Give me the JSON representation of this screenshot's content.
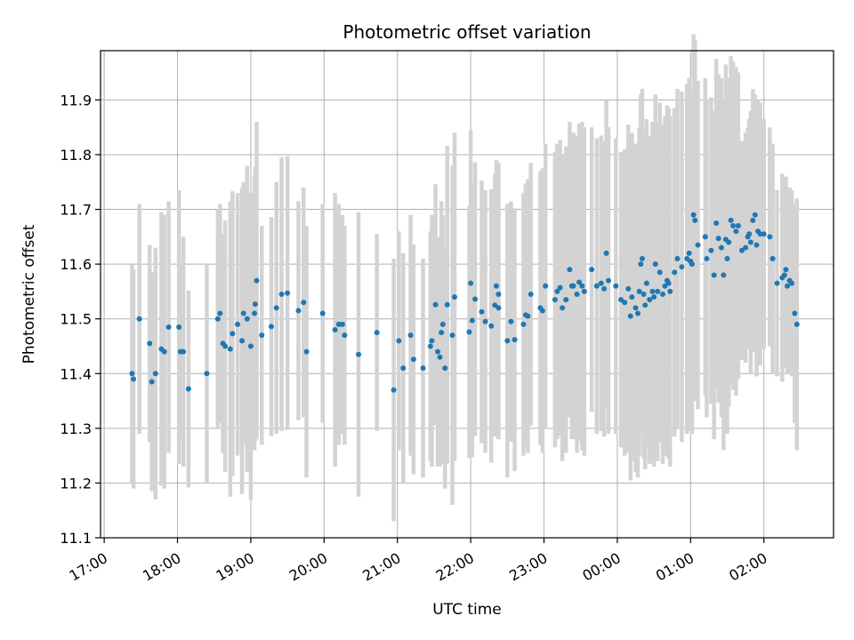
{
  "chart_data": {
    "type": "scatter",
    "title": "Photometric offset variation",
    "xlabel": "UTC time",
    "ylabel": "Photometric offset",
    "x_unit": "hours since 17:00 UTC",
    "xlim": [
      -0.05,
      9.95
    ],
    "ylim": [
      11.1,
      11.99
    ],
    "yticks": [
      11.1,
      11.2,
      11.3,
      11.4,
      11.5,
      11.6,
      11.7,
      11.8,
      11.9
    ],
    "ytick_labels": [
      "11.1",
      "11.2",
      "11.3",
      "11.4",
      "11.5",
      "11.6",
      "11.7",
      "11.8",
      "11.9"
    ],
    "xticks": [
      0,
      1,
      2,
      3,
      4,
      5,
      6,
      7,
      8,
      9
    ],
    "xtick_labels": [
      "17:00",
      "18:00",
      "19:00",
      "20:00",
      "21:00",
      "22:00",
      "23:00",
      "00:00",
      "01:00",
      "02:00"
    ],
    "grid": true,
    "errorbar_color": "#d3d3d3",
    "point_color": "#1f77b4",
    "series": [
      {
        "name": "offset",
        "points": [
          [
            0.38,
            11.4,
            0.2
          ],
          [
            0.4,
            11.39,
            0.2
          ],
          [
            0.48,
            11.5,
            0.21
          ],
          [
            0.62,
            11.455,
            0.18
          ],
          [
            0.65,
            11.385,
            0.2
          ],
          [
            0.7,
            11.4,
            0.23
          ],
          [
            0.78,
            11.445,
            0.25
          ],
          [
            0.82,
            11.44,
            0.25
          ],
          [
            0.88,
            11.485,
            0.23
          ],
          [
            1.02,
            11.485,
            0.25
          ],
          [
            1.04,
            11.44,
            0.16
          ],
          [
            1.08,
            11.44,
            0.21
          ],
          [
            1.15,
            11.372,
            0.18
          ],
          [
            1.4,
            11.4,
            0.2
          ],
          [
            1.55,
            11.5,
            0.2
          ],
          [
            1.58,
            11.51,
            0.2
          ],
          [
            1.62,
            11.455,
            0.2
          ],
          [
            1.65,
            11.45,
            0.23
          ],
          [
            1.72,
            11.445,
            0.27
          ],
          [
            1.75,
            11.473,
            0.26
          ],
          [
            1.82,
            11.49,
            0.24
          ],
          [
            1.88,
            11.46,
            0.28
          ],
          [
            1.9,
            11.51,
            0.24
          ],
          [
            1.95,
            11.5,
            0.28
          ],
          [
            2.0,
            11.45,
            0.28
          ],
          [
            2.05,
            11.51,
            0.25
          ],
          [
            2.06,
            11.527,
            0.25
          ],
          [
            2.08,
            11.57,
            0.29
          ],
          [
            2.15,
            11.47,
            0.2
          ],
          [
            2.28,
            11.486,
            0.2
          ],
          [
            2.35,
            11.52,
            0.23
          ],
          [
            2.42,
            11.545,
            0.25
          ],
          [
            2.5,
            11.547,
            0.25
          ],
          [
            2.65,
            11.515,
            0.2
          ],
          [
            2.72,
            11.53,
            0.21
          ],
          [
            2.76,
            11.44,
            0.23
          ],
          [
            2.98,
            11.51,
            0.2
          ],
          [
            3.15,
            11.48,
            0.25
          ],
          [
            3.2,
            11.49,
            0.22
          ],
          [
            3.25,
            11.49,
            0.2
          ],
          [
            3.28,
            11.47,
            0.2
          ],
          [
            3.47,
            11.435,
            0.26
          ],
          [
            3.72,
            11.475,
            0.18
          ],
          [
            3.95,
            11.37,
            0.24
          ],
          [
            4.02,
            11.46,
            0.2
          ],
          [
            4.08,
            11.41,
            0.21
          ],
          [
            4.18,
            11.47,
            0.22
          ],
          [
            4.22,
            11.426,
            0.21
          ],
          [
            4.35,
            11.41,
            0.2
          ],
          [
            4.45,
            11.45,
            0.21
          ],
          [
            4.47,
            11.46,
            0.23
          ],
          [
            4.52,
            11.526,
            0.22
          ],
          [
            4.55,
            11.44,
            0.21
          ],
          [
            4.58,
            11.43,
            0.2
          ],
          [
            4.6,
            11.475,
            0.24
          ],
          [
            4.62,
            11.49,
            0.2
          ],
          [
            4.65,
            11.41,
            0.22
          ],
          [
            4.68,
            11.526,
            0.29
          ],
          [
            4.75,
            11.47,
            0.31
          ],
          [
            4.78,
            11.54,
            0.3
          ],
          [
            4.98,
            11.476,
            0.23
          ],
          [
            5.0,
            11.565,
            0.28
          ],
          [
            5.02,
            11.497,
            0.25
          ],
          [
            5.06,
            11.536,
            0.25
          ],
          [
            5.15,
            11.513,
            0.24
          ],
          [
            5.2,
            11.495,
            0.24
          ],
          [
            5.28,
            11.487,
            0.25
          ],
          [
            5.33,
            11.525,
            0.24
          ],
          [
            5.35,
            11.56,
            0.23
          ],
          [
            5.38,
            11.545,
            0.24
          ],
          [
            5.38,
            11.52,
            0.24
          ],
          [
            5.5,
            11.46,
            0.25
          ],
          [
            5.55,
            11.495,
            0.22
          ],
          [
            5.6,
            11.462,
            0.24
          ],
          [
            5.72,
            11.49,
            0.24
          ],
          [
            5.75,
            11.507,
            0.24
          ],
          [
            5.78,
            11.505,
            0.25
          ],
          [
            5.82,
            11.545,
            0.24
          ],
          [
            5.95,
            11.52,
            0.25
          ],
          [
            5.98,
            11.515,
            0.26
          ],
          [
            6.02,
            11.56,
            0.26
          ],
          [
            6.15,
            11.535,
            0.27
          ],
          [
            6.18,
            11.55,
            0.27
          ],
          [
            6.22,
            11.557,
            0.27
          ],
          [
            6.25,
            11.52,
            0.28
          ],
          [
            6.3,
            11.535,
            0.28
          ],
          [
            6.35,
            11.59,
            0.27
          ],
          [
            6.38,
            11.56,
            0.28
          ],
          [
            6.4,
            11.56,
            0.28
          ],
          [
            6.45,
            11.545,
            0.29
          ],
          [
            6.48,
            11.567,
            0.29
          ],
          [
            6.52,
            11.56,
            0.3
          ],
          [
            6.55,
            11.55,
            0.3
          ],
          [
            6.65,
            11.59,
            0.26
          ],
          [
            6.72,
            11.56,
            0.27
          ],
          [
            6.78,
            11.565,
            0.27
          ],
          [
            6.82,
            11.555,
            0.27
          ],
          [
            6.85,
            11.62,
            0.28
          ],
          [
            6.88,
            11.57,
            0.28
          ],
          [
            6.98,
            11.56,
            0.27
          ],
          [
            7.05,
            11.535,
            0.27
          ],
          [
            7.1,
            11.53,
            0.28
          ],
          [
            7.15,
            11.555,
            0.3
          ],
          [
            7.18,
            11.505,
            0.3
          ],
          [
            7.2,
            11.54,
            0.3
          ],
          [
            7.25,
            11.52,
            0.3
          ],
          [
            7.28,
            11.51,
            0.3
          ],
          [
            7.3,
            11.55,
            0.3
          ],
          [
            7.32,
            11.6,
            0.31
          ],
          [
            7.34,
            11.61,
            0.31
          ],
          [
            7.36,
            11.545,
            0.3
          ],
          [
            7.38,
            11.525,
            0.3
          ],
          [
            7.4,
            11.565,
            0.3
          ],
          [
            7.44,
            11.535,
            0.3
          ],
          [
            7.48,
            11.55,
            0.31
          ],
          [
            7.5,
            11.54,
            0.31
          ],
          [
            7.52,
            11.6,
            0.31
          ],
          [
            7.55,
            11.55,
            0.31
          ],
          [
            7.58,
            11.585,
            0.31
          ],
          [
            7.62,
            11.545,
            0.31
          ],
          [
            7.65,
            11.56,
            0.31
          ],
          [
            7.68,
            11.57,
            0.32
          ],
          [
            7.7,
            11.565,
            0.32
          ],
          [
            7.72,
            11.55,
            0.32
          ],
          [
            7.78,
            11.585,
            0.3
          ],
          [
            7.82,
            11.61,
            0.31
          ],
          [
            7.88,
            11.595,
            0.32
          ],
          [
            7.95,
            11.61,
            0.32
          ],
          [
            7.98,
            11.62,
            0.32
          ],
          [
            8.0,
            11.605,
            0.31
          ],
          [
            8.02,
            11.6,
            0.31
          ],
          [
            8.04,
            11.69,
            0.33
          ],
          [
            8.06,
            11.68,
            0.33
          ],
          [
            8.1,
            11.635,
            0.3
          ],
          [
            8.2,
            11.65,
            0.29
          ],
          [
            8.22,
            11.61,
            0.29
          ],
          [
            8.28,
            11.625,
            0.28
          ],
          [
            8.32,
            11.58,
            0.3
          ],
          [
            8.35,
            11.675,
            0.3
          ],
          [
            8.38,
            11.647,
            0.3
          ],
          [
            8.42,
            11.63,
            0.31
          ],
          [
            8.45,
            11.58,
            0.32
          ],
          [
            8.48,
            11.645,
            0.32
          ],
          [
            8.5,
            11.61,
            0.32
          ],
          [
            8.52,
            11.64,
            0.3
          ],
          [
            8.55,
            11.68,
            0.3
          ],
          [
            8.58,
            11.67,
            0.3
          ],
          [
            8.62,
            11.66,
            0.3
          ],
          [
            8.65,
            11.67,
            0.28
          ],
          [
            8.7,
            11.625,
            0.2
          ],
          [
            8.75,
            11.63,
            0.21
          ],
          [
            8.78,
            11.65,
            0.2
          ],
          [
            8.8,
            11.655,
            0.21
          ],
          [
            8.82,
            11.64,
            0.24
          ],
          [
            8.85,
            11.68,
            0.24
          ],
          [
            8.88,
            11.69,
            0.22
          ],
          [
            8.9,
            11.635,
            0.24
          ],
          [
            8.92,
            11.66,
            0.24
          ],
          [
            8.95,
            11.655,
            0.24
          ],
          [
            9.0,
            11.655,
            0.21
          ],
          [
            9.08,
            11.65,
            0.2
          ],
          [
            9.12,
            11.61,
            0.21
          ],
          [
            9.18,
            11.565,
            0.17
          ],
          [
            9.25,
            11.575,
            0.19
          ],
          [
            9.28,
            11.58,
            0.17
          ],
          [
            9.3,
            11.59,
            0.17
          ],
          [
            9.32,
            11.56,
            0.16
          ],
          [
            9.35,
            11.57,
            0.17
          ],
          [
            9.38,
            11.565,
            0.17
          ],
          [
            9.42,
            11.51,
            0.2
          ],
          [
            9.45,
            11.49,
            0.23
          ]
        ]
      }
    ]
  }
}
